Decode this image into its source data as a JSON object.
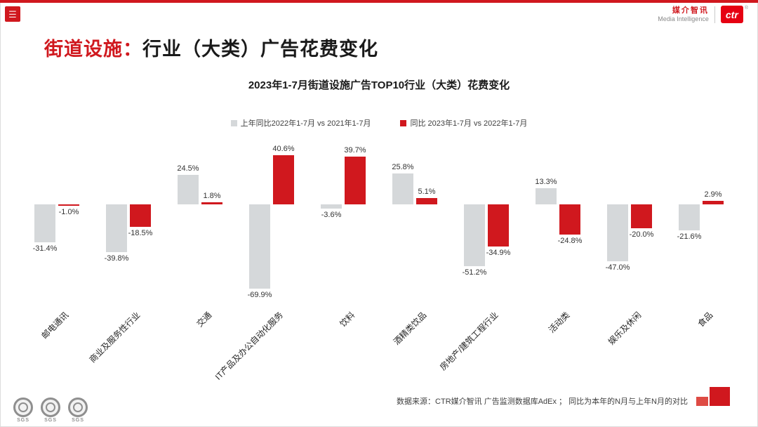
{
  "page": {
    "title_red": "街道设施：",
    "title_black": "行业（大类）广告花费变化"
  },
  "brand": {
    "name_cn": "媒介智讯",
    "name_en": "Media Intelligence",
    "logo": "ctr",
    "reg": "®"
  },
  "colors": {
    "accent_red": "#d0181e",
    "brand_red": "#e60012",
    "bar_gray": "#d5d8da",
    "bar_red": "#d0181e"
  },
  "chart_data": {
    "type": "bar",
    "title": "2023年1-7月街道设施广告TOP10行业（大类）花费变化",
    "categories": [
      "邮电通讯",
      "商业及服务性行业",
      "交通",
      "IT产品及办公自动化服务",
      "饮料",
      "酒精类饮品",
      "房地产/建筑工程行业",
      "活动类",
      "娱乐及休闲",
      "食品"
    ],
    "series": [
      {
        "name": "上年同比2022年1-7月  vs 2021年1-7月",
        "color": "#d5d8da",
        "values": [
          -31.4,
          -39.8,
          24.5,
          -69.9,
          -3.6,
          25.8,
          -51.2,
          13.3,
          -47.0,
          -21.6
        ]
      },
      {
        "name": "同比 2023年1-7月  vs 2022年1-7月",
        "color": "#d0181e",
        "values": [
          -1.0,
          -18.5,
          1.8,
          40.6,
          39.7,
          5.1,
          -34.9,
          -24.8,
          -20.0,
          2.9
        ]
      }
    ],
    "value_suffix": "%",
    "ylim": [
      -75,
      45
    ],
    "grid": false,
    "legend_position": "top",
    "xlabel": "",
    "ylabel": ""
  },
  "footer": {
    "source": "数据来源：CTR媒介智讯 广告监测数据库AdEx ；  同比为本年的N月与上年N月的对比",
    "badge_label": "SGS"
  }
}
